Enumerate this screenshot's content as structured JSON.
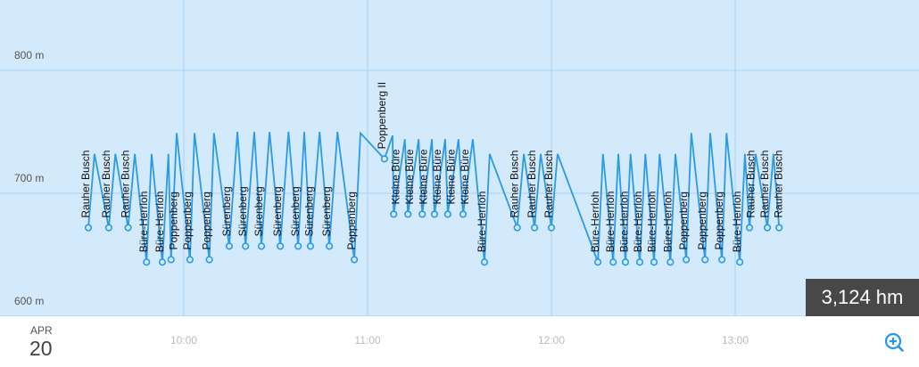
{
  "summary": {
    "total_climb": "3,124 hm"
  },
  "date": {
    "month": "APR",
    "day": "20"
  },
  "colors": {
    "background": "#d3e9fc",
    "line": "#2b9be8",
    "grid": "#a7d2f7",
    "badge": "#484848",
    "accent": "#2196f3"
  },
  "icons": {
    "zoom": "zoom-in-icon"
  },
  "chart_data": {
    "type": "line",
    "title": "",
    "xlabel": "",
    "ylabel": "",
    "ylim": [
      600,
      857
    ],
    "xlim": [
      "09:00:00",
      "13:45:00"
    ],
    "y_ticks": [
      "600 m",
      "700 m",
      "800 m"
    ],
    "y_tick_values": [
      600,
      700,
      800
    ],
    "x_ticks": [
      "10:00",
      "11:00",
      "12:00",
      "13:00"
    ],
    "grid": true,
    "series": [
      {
        "points": [
          {
            "t": "09:28:50",
            "m": 672,
            "label": "Rauher Busch"
          },
          {
            "t": "09:30:50",
            "m": 732
          },
          {
            "t": "09:35:30",
            "m": 672,
            "label": "Rauher Busch"
          },
          {
            "t": "09:37:40",
            "m": 732
          },
          {
            "t": "09:41:50",
            "m": 672,
            "label": "Rauher Busch"
          },
          {
            "t": "09:44:00",
            "m": 732
          },
          {
            "t": "09:47:50",
            "m": 644,
            "label": "Büre-Herrloh"
          },
          {
            "t": "09:49:30",
            "m": 732
          },
          {
            "t": "09:53:00",
            "m": 644,
            "label": "Büre-Herrloh"
          },
          {
            "t": "09:55:00",
            "m": 732
          },
          {
            "t": "09:55:50",
            "m": 646,
            "label": "Poppenberg"
          },
          {
            "t": "09:57:40",
            "m": 749
          },
          {
            "t": "10:02:00",
            "m": 646,
            "label": "Poppenberg"
          },
          {
            "t": "10:03:30",
            "m": 749
          },
          {
            "t": "10:08:20",
            "m": 646,
            "label": "Poppenberg"
          },
          {
            "t": "10:09:50",
            "m": 749
          },
          {
            "t": "10:14:50",
            "m": 657,
            "label": "Sürenberg"
          },
          {
            "t": "10:17:30",
            "m": 750
          },
          {
            "t": "10:20:10",
            "m": 657,
            "label": "Sürenberg"
          },
          {
            "t": "10:23:00",
            "m": 750
          },
          {
            "t": "10:25:20",
            "m": 657,
            "label": "Sürenberg"
          },
          {
            "t": "10:28:00",
            "m": 750
          },
          {
            "t": "10:31:30",
            "m": 657,
            "label": "Sürenberg"
          },
          {
            "t": "10:34:10",
            "m": 750
          },
          {
            "t": "10:37:20",
            "m": 657,
            "label": "Sürenberg"
          },
          {
            "t": "10:39:20",
            "m": 750
          },
          {
            "t": "10:41:20",
            "m": 657,
            "label": "Sürenberg"
          },
          {
            "t": "10:44:20",
            "m": 750
          },
          {
            "t": "10:47:30",
            "m": 657,
            "label": "Sürenberg"
          },
          {
            "t": "10:50:10",
            "m": 750
          },
          {
            "t": "10:55:40",
            "m": 646,
            "label": "Poppenberg"
          },
          {
            "t": "10:57:40",
            "m": 749
          },
          {
            "t": "11:05:30",
            "m": 728,
            "label": "Poppenberg II"
          },
          {
            "t": "11:08:10",
            "m": 747
          },
          {
            "t": "11:08:30",
            "m": 683,
            "label": "Kleine Büre"
          },
          {
            "t": "11:12:10",
            "m": 744
          },
          {
            "t": "11:13:10",
            "m": 683,
            "label": "Kleine Büre"
          },
          {
            "t": "11:16:40",
            "m": 744
          },
          {
            "t": "11:17:50",
            "m": 683,
            "label": "Kleine Büre"
          },
          {
            "t": "11:21:00",
            "m": 744
          },
          {
            "t": "11:21:50",
            "m": 683,
            "label": "Kleine Büre"
          },
          {
            "t": "11:25:20",
            "m": 744
          },
          {
            "t": "11:26:10",
            "m": 683,
            "label": "Kleine Büre"
          },
          {
            "t": "11:29:40",
            "m": 744
          },
          {
            "t": "11:31:10",
            "m": 683,
            "label": "Kleine Büre"
          },
          {
            "t": "11:34:20",
            "m": 744
          },
          {
            "t": "11:38:10",
            "m": 644,
            "label": "Büre-Herrloh"
          },
          {
            "t": "11:39:50",
            "m": 732
          },
          {
            "t": "11:48:50",
            "m": 672,
            "label": "Rauher Busch"
          },
          {
            "t": "11:51:00",
            "m": 732
          },
          {
            "t": "11:54:30",
            "m": 672,
            "label": "Rauher Busch"
          },
          {
            "t": "11:56:30",
            "m": 732
          },
          {
            "t": "12:00:00",
            "m": 672,
            "label": "Rauher Busch"
          },
          {
            "t": "12:02:00",
            "m": 732
          },
          {
            "t": "12:15:10",
            "m": 644,
            "label": "Büre-Herrloh"
          },
          {
            "t": "12:16:50",
            "m": 732
          },
          {
            "t": "12:20:10",
            "m": 644,
            "label": "Büre-Herrloh"
          },
          {
            "t": "12:21:50",
            "m": 732
          },
          {
            "t": "12:24:10",
            "m": 644,
            "label": "Büre-Herrloh"
          },
          {
            "t": "12:25:50",
            "m": 732
          },
          {
            "t": "12:28:50",
            "m": 644,
            "label": "Büre-Herrloh"
          },
          {
            "t": "12:30:40",
            "m": 732
          },
          {
            "t": "12:33:30",
            "m": 644,
            "label": "Büre-Herrloh"
          },
          {
            "t": "12:35:20",
            "m": 732
          },
          {
            "t": "12:38:50",
            "m": 644,
            "label": "Büre-Herrloh"
          },
          {
            "t": "12:40:30",
            "m": 732
          },
          {
            "t": "12:44:00",
            "m": 646,
            "label": "Poppenberg"
          },
          {
            "t": "12:45:40",
            "m": 749
          },
          {
            "t": "12:50:10",
            "m": 646,
            "label": "Poppenberg"
          },
          {
            "t": "12:51:50",
            "m": 749
          },
          {
            "t": "12:55:40",
            "m": 646,
            "label": "Poppenberg"
          },
          {
            "t": "12:57:10",
            "m": 749
          },
          {
            "t": "13:01:30",
            "m": 644,
            "label": "Büre-Herrloh"
          },
          {
            "t": "13:03:10",
            "m": 732
          },
          {
            "t": "13:04:40",
            "m": 672,
            "label": "Rauher Busch"
          },
          {
            "t": "13:06:40",
            "m": 732
          },
          {
            "t": "13:10:30",
            "m": 672,
            "label": "Rauher Busch"
          },
          {
            "t": "13:12:30",
            "m": 732
          },
          {
            "t": "13:14:20",
            "m": 672,
            "label": "Rauher Busch"
          }
        ]
      }
    ]
  }
}
